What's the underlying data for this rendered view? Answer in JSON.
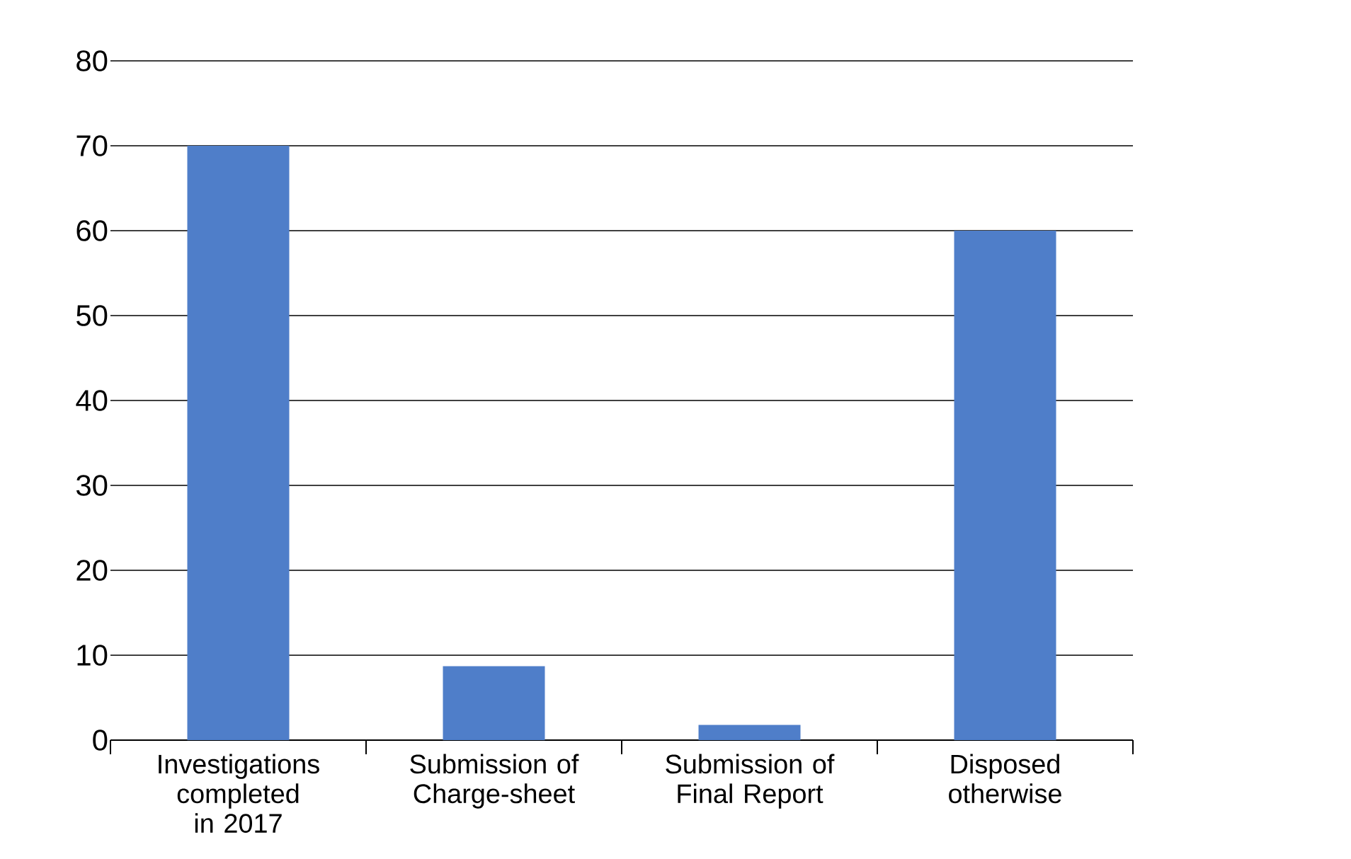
{
  "chart_data": {
    "type": "bar",
    "categories": [
      "Investigations completed in 2017",
      "Submission of Charge-sheet",
      "Submission of Final Report",
      "Disposed otherwise"
    ],
    "values": [
      70,
      8.7,
      1.8,
      60
    ],
    "color": "#4f7ec9",
    "ylim": [
      0,
      80
    ],
    "yticks": [
      0,
      10,
      20,
      30,
      40,
      50,
      60,
      70,
      80
    ],
    "grid": "y"
  }
}
